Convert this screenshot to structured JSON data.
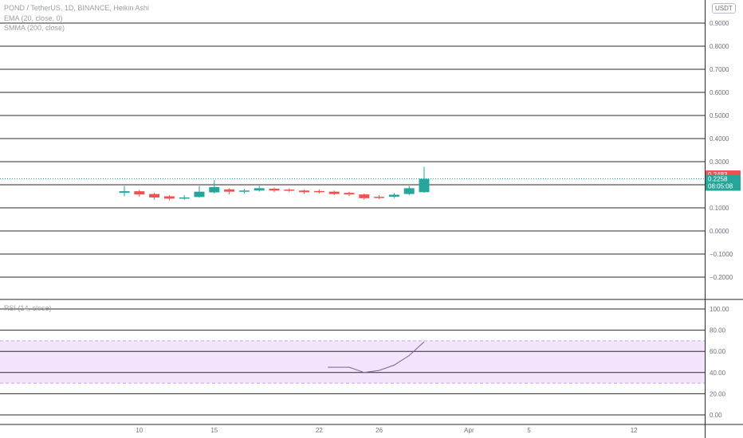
{
  "header": {
    "symbol_line": "POND / TetherUS, 1D, BINANCE, Heikin Ashi",
    "indicator_1": "EMA (20, close, 0)",
    "indicator_2": "SMMA (200, close)",
    "currency_badge": "USDT"
  },
  "rsi_panel": {
    "label": "RSI (14, close)"
  },
  "colors": {
    "up": "#26a69a",
    "down": "#ef5350",
    "rsi_band": "#f3e5fc",
    "rsi_band_border": "#c7a3de",
    "rsi_line": "#7b5f96",
    "grid": "#2a2a2a",
    "current_price_line": "#26a69a"
  },
  "chart_data": [
    {
      "type": "candlestick",
      "yticks": [
        "0.9000",
        "0.8000",
        "0.7000",
        "0.6000",
        "0.5000",
        "0.4000",
        "0.3000",
        "0.2000",
        "0.1000",
        "0.0000",
        "−0.1000",
        "−0.2000"
      ],
      "ylim": [
        -0.25,
        0.95
      ],
      "x_tick_labels": [
        {
          "label": "10",
          "date": "2021-03-10"
        },
        {
          "label": "15",
          "date": "2021-03-15"
        },
        {
          "label": "22",
          "date": "2021-03-22"
        },
        {
          "label": "26",
          "date": "2021-03-26"
        },
        {
          "label": "Apr",
          "date": "2021-04-01"
        },
        {
          "label": "5",
          "date": "2021-04-05"
        },
        {
          "label": "12",
          "date": "2021-04-12"
        }
      ],
      "xlim": [
        "2021-03-04",
        "2021-04-16"
      ],
      "candles": [
        {
          "date": "2021-03-09",
          "open": 0.165,
          "high": 0.195,
          "low": 0.15,
          "close": 0.172
        },
        {
          "date": "2021-03-10",
          "open": 0.172,
          "high": 0.178,
          "low": 0.148,
          "close": 0.158
        },
        {
          "date": "2021-03-11",
          "open": 0.16,
          "high": 0.165,
          "low": 0.135,
          "close": 0.145
        },
        {
          "date": "2021-03-12",
          "open": 0.15,
          "high": 0.155,
          "low": 0.132,
          "close": 0.14
        },
        {
          "date": "2021-03-13",
          "open": 0.145,
          "high": 0.155,
          "low": 0.135,
          "close": 0.145
        },
        {
          "date": "2021-03-14",
          "open": 0.147,
          "high": 0.195,
          "low": 0.145,
          "close": 0.17
        },
        {
          "date": "2021-03-15",
          "open": 0.167,
          "high": 0.22,
          "low": 0.162,
          "close": 0.19
        },
        {
          "date": "2021-03-16",
          "open": 0.18,
          "high": 0.185,
          "low": 0.158,
          "close": 0.17
        },
        {
          "date": "2021-03-17",
          "open": 0.172,
          "high": 0.182,
          "low": 0.162,
          "close": 0.175
        },
        {
          "date": "2021-03-18",
          "open": 0.175,
          "high": 0.195,
          "low": 0.17,
          "close": 0.185
        },
        {
          "date": "2021-03-19",
          "open": 0.183,
          "high": 0.188,
          "low": 0.168,
          "close": 0.175
        },
        {
          "date": "2021-03-20",
          "open": 0.179,
          "high": 0.185,
          "low": 0.168,
          "close": 0.175
        },
        {
          "date": "2021-03-21",
          "open": 0.175,
          "high": 0.18,
          "low": 0.16,
          "close": 0.168
        },
        {
          "date": "2021-03-22",
          "open": 0.173,
          "high": 0.18,
          "low": 0.162,
          "close": 0.168
        },
        {
          "date": "2021-03-23",
          "open": 0.17,
          "high": 0.175,
          "low": 0.155,
          "close": 0.16
        },
        {
          "date": "2021-03-24",
          "open": 0.165,
          "high": 0.17,
          "low": 0.15,
          "close": 0.158
        },
        {
          "date": "2021-03-25",
          "open": 0.158,
          "high": 0.162,
          "low": 0.135,
          "close": 0.142
        },
        {
          "date": "2021-03-26",
          "open": 0.148,
          "high": 0.155,
          "low": 0.138,
          "close": 0.145
        },
        {
          "date": "2021-03-27",
          "open": 0.148,
          "high": 0.165,
          "low": 0.142,
          "close": 0.157
        },
        {
          "date": "2021-03-28",
          "open": 0.16,
          "high": 0.195,
          "low": 0.155,
          "close": 0.185
        },
        {
          "date": "2021-03-29",
          "open": 0.168,
          "high": 0.278,
          "low": 0.165,
          "close": 0.2258
        }
      ],
      "price_labels": [
        {
          "text": "0.2483",
          "value": 0.2483,
          "color": "#ef5350"
        },
        {
          "text": "0.2258",
          "value": 0.2258,
          "color": "#26a69a",
          "sub_text": "08:05:08"
        }
      ]
    },
    {
      "type": "line",
      "name": "",
      "yticks": [
        "100.00",
        "80.00",
        "60.00",
        "40.00",
        "20.00",
        "0.00"
      ],
      "ylim": [
        -5,
        105
      ],
      "band": [
        30,
        70
      ],
      "x": [
        "2021-03-23",
        "2021-03-24",
        "2021-03-25",
        "2021-03-26",
        "2021-03-27",
        "2021-03-28",
        "2021-03-29"
      ],
      "values": [
        45,
        45,
        40,
        42,
        47,
        56,
        69
      ]
    }
  ]
}
